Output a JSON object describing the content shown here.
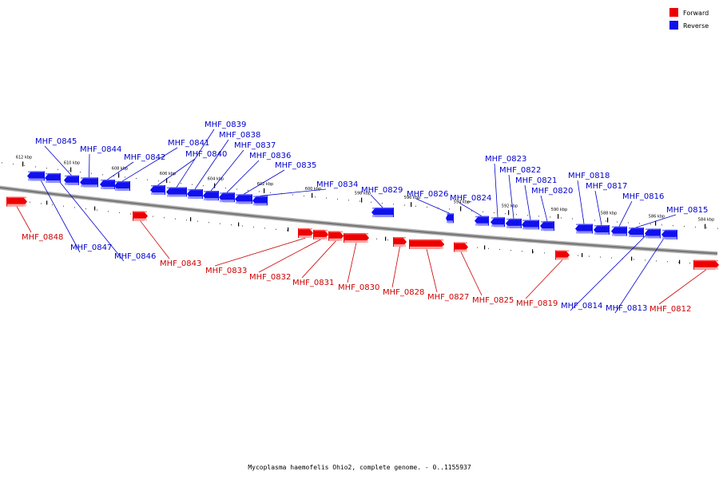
{
  "caption": "Mycoplasma haemofelis Ohio2, complete genome. - 0..1155937",
  "legend": {
    "forward": {
      "label": "Forward",
      "color": "#ee0000"
    },
    "reverse": {
      "label": "Reverse",
      "color": "#1010ee"
    }
  },
  "colors": {
    "forward_line": "#cc0000",
    "reverse_line": "#0000cc",
    "backbone": "#777777"
  },
  "scale": {
    "unit": "kbp",
    "ticks": [
      {
        "kbp": 612,
        "label": "612 kbp"
      },
      {
        "kbp": 610,
        "label": "610 kbp"
      },
      {
        "kbp": 608,
        "label": "608 kbp"
      },
      {
        "kbp": 606,
        "label": "606 kbp"
      },
      {
        "kbp": 604,
        "label": "604 kbp"
      },
      {
        "kbp": 602,
        "label": "602 kbp"
      },
      {
        "kbp": 600,
        "label": "600 kbp"
      },
      {
        "kbp": 598,
        "label": "598 kbp"
      },
      {
        "kbp": 596,
        "label": "596 kbp"
      },
      {
        "kbp": 594,
        "label": "594 kbp"
      },
      {
        "kbp": 592,
        "label": "592 kbp"
      },
      {
        "kbp": 590,
        "label": "590 kbp"
      },
      {
        "kbp": 588,
        "label": "588 kbp"
      },
      {
        "kbp": 586,
        "label": "586 kbp"
      },
      {
        "kbp": 584,
        "label": "584 kbp"
      }
    ]
  },
  "genes": [
    {
      "id": "MHF_0848",
      "strand": "forward"
    },
    {
      "id": "MHF_0847",
      "strand": "reverse"
    },
    {
      "id": "MHF_0846",
      "strand": "reverse"
    },
    {
      "id": "MHF_0845",
      "strand": "reverse"
    },
    {
      "id": "MHF_0844",
      "strand": "reverse"
    },
    {
      "id": "MHF_0843",
      "strand": "forward"
    },
    {
      "id": "MHF_0842",
      "strand": "reverse"
    },
    {
      "id": "MHF_0841",
      "strand": "reverse"
    },
    {
      "id": "MHF_0840",
      "strand": "reverse"
    },
    {
      "id": "MHF_0839",
      "strand": "reverse"
    },
    {
      "id": "MHF_0838",
      "strand": "reverse"
    },
    {
      "id": "MHF_0837",
      "strand": "reverse"
    },
    {
      "id": "MHF_0836",
      "strand": "reverse"
    },
    {
      "id": "MHF_0835",
      "strand": "reverse"
    },
    {
      "id": "MHF_0834",
      "strand": "reverse"
    },
    {
      "id": "MHF_0833",
      "strand": "forward"
    },
    {
      "id": "MHF_0832",
      "strand": "forward"
    },
    {
      "id": "MHF_0831",
      "strand": "forward"
    },
    {
      "id": "MHF_0830",
      "strand": "forward"
    },
    {
      "id": "MHF_0829",
      "strand": "reverse"
    },
    {
      "id": "MHF_0828",
      "strand": "forward"
    },
    {
      "id": "MHF_0827",
      "strand": "forward"
    },
    {
      "id": "MHF_0826",
      "strand": "reverse"
    },
    {
      "id": "MHF_0825",
      "strand": "forward"
    },
    {
      "id": "MHF_0824",
      "strand": "reverse"
    },
    {
      "id": "MHF_0823",
      "strand": "reverse"
    },
    {
      "id": "MHF_0822",
      "strand": "reverse"
    },
    {
      "id": "MHF_0821",
      "strand": "reverse"
    },
    {
      "id": "MHF_0820",
      "strand": "reverse"
    },
    {
      "id": "MHF_0819",
      "strand": "forward"
    },
    {
      "id": "MHF_0818",
      "strand": "reverse"
    },
    {
      "id": "MHF_0817",
      "strand": "reverse"
    },
    {
      "id": "MHF_0816",
      "strand": "reverse"
    },
    {
      "id": "MHF_0815",
      "strand": "reverse"
    },
    {
      "id": "MHF_0814",
      "strand": "reverse"
    },
    {
      "id": "MHF_0813",
      "strand": "reverse"
    },
    {
      "id": "MHF_0812",
      "strand": "forward"
    }
  ]
}
